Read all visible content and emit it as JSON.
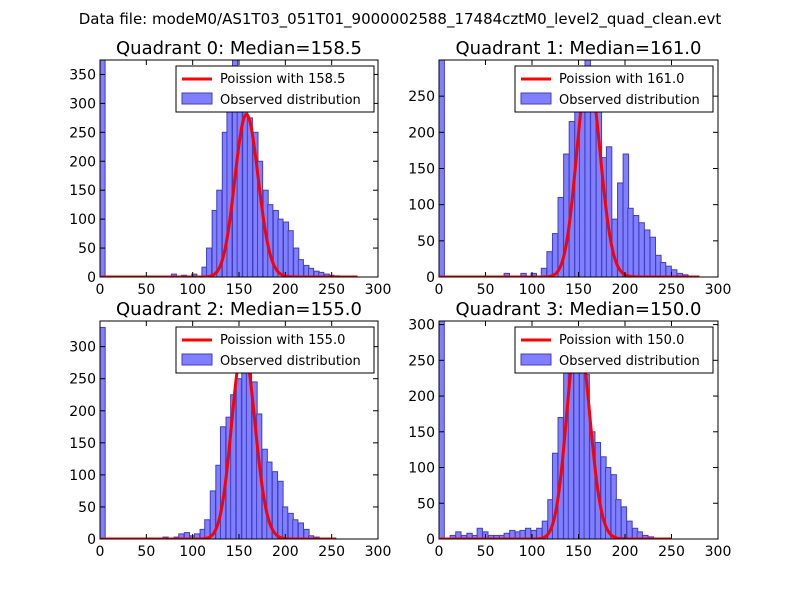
{
  "figure": {
    "suptitle": "Data file: modeM0/AS1T03_051T01_9000002588_17484cztM0_level2_quad_clean.evt",
    "colors": {
      "bar": "#7f7fff",
      "bar_edge": "#3f3fbf",
      "line": "#ff0000"
    }
  },
  "chart_data": [
    {
      "type": "bar",
      "title": "Quadrant 0: Median=158.5",
      "median": 158.5,
      "xlim": [
        0,
        300
      ],
      "ylim": [
        0,
        375
      ],
      "xticks": [
        0,
        50,
        100,
        150,
        200,
        250,
        300
      ],
      "yticks": [
        0,
        50,
        100,
        150,
        200,
        250,
        300,
        350
      ],
      "bin_width": 5.5,
      "bins": [
        [
          0,
          375
        ],
        [
          77,
          5
        ],
        [
          88,
          3
        ],
        [
          99,
          5
        ],
        [
          110,
          17
        ],
        [
          115,
          50
        ],
        [
          121,
          115
        ],
        [
          126,
          150
        ],
        [
          132,
          250
        ],
        [
          137,
          300
        ],
        [
          143,
          375
        ],
        [
          148,
          340
        ],
        [
          154,
          310
        ],
        [
          159,
          275
        ],
        [
          165,
          250
        ],
        [
          170,
          200
        ],
        [
          176,
          150
        ],
        [
          181,
          125
        ],
        [
          187,
          115
        ],
        [
          192,
          100
        ],
        [
          198,
          95
        ],
        [
          203,
          80
        ],
        [
          209,
          50
        ],
        [
          214,
          30
        ],
        [
          220,
          20
        ],
        [
          225,
          15
        ],
        [
          231,
          10
        ],
        [
          236,
          8
        ],
        [
          242,
          5
        ],
        [
          247,
          3
        ],
        [
          253,
          2
        ]
      ],
      "poisson_label": "Poission with 158.5",
      "hist_label": "Observed distribution",
      "poisson_peak": 281,
      "poisson_xmax": 278
    },
    {
      "type": "bar",
      "title": "Quadrant 1: Median=161.0",
      "median": 161.0,
      "xlim": [
        0,
        300
      ],
      "ylim": [
        0,
        300
      ],
      "xticks": [
        0,
        50,
        100,
        150,
        200,
        250,
        300
      ],
      "yticks": [
        0,
        50,
        100,
        150,
        200,
        250
      ],
      "bin_width": 5.8,
      "bins": [
        [
          0,
          300
        ],
        [
          70,
          5
        ],
        [
          88,
          5
        ],
        [
          99,
          5
        ],
        [
          110,
          12
        ],
        [
          116,
          35
        ],
        [
          122,
          60
        ],
        [
          128,
          110
        ],
        [
          134,
          170
        ],
        [
          140,
          215
        ],
        [
          146,
          255
        ],
        [
          151,
          270
        ],
        [
          157,
          300
        ],
        [
          163,
          275
        ],
        [
          169,
          250
        ],
        [
          175,
          165
        ],
        [
          180,
          180
        ],
        [
          186,
          80
        ],
        [
          192,
          130
        ],
        [
          198,
          170
        ],
        [
          203,
          95
        ],
        [
          209,
          85
        ],
        [
          215,
          75
        ],
        [
          221,
          65
        ],
        [
          227,
          55
        ],
        [
          233,
          30
        ],
        [
          238,
          20
        ],
        [
          244,
          15
        ],
        [
          250,
          10
        ],
        [
          256,
          5
        ],
        [
          262,
          3
        ]
      ],
      "poisson_label": "Poission with 161.0",
      "hist_label": "Observed distribution",
      "poisson_peak": 281,
      "poisson_xmax": 280
    },
    {
      "type": "bar",
      "title": "Quadrant 2: Median=155.0",
      "median": 155.0,
      "xlim": [
        0,
        300
      ],
      "ylim": [
        0,
        340
      ],
      "xticks": [
        0,
        50,
        100,
        150,
        200,
        250,
        300
      ],
      "yticks": [
        0,
        50,
        100,
        150,
        200,
        250,
        300
      ],
      "bin_width": 5.6,
      "bins": [
        [
          0,
          330
        ],
        [
          68,
          3
        ],
        [
          80,
          3
        ],
        [
          85,
          8
        ],
        [
          91,
          10
        ],
        [
          97,
          5
        ],
        [
          102,
          8
        ],
        [
          108,
          15
        ],
        [
          113,
          30
        ],
        [
          119,
          75
        ],
        [
          125,
          115
        ],
        [
          130,
          175
        ],
        [
          136,
          190
        ],
        [
          141,
          225
        ],
        [
          147,
          250
        ],
        [
          153,
          300
        ],
        [
          158,
          285
        ],
        [
          164,
          245
        ],
        [
          169,
          195
        ],
        [
          175,
          140
        ],
        [
          180,
          120
        ],
        [
          186,
          105
        ],
        [
          192,
          90
        ],
        [
          197,
          50
        ],
        [
          203,
          40
        ],
        [
          208,
          30
        ],
        [
          214,
          25
        ],
        [
          220,
          15
        ],
        [
          225,
          5
        ],
        [
          231,
          3
        ]
      ],
      "poisson_label": "Poission with 155.0",
      "hist_label": "Observed distribution",
      "poisson_peak": 301,
      "poisson_xmax": 255
    },
    {
      "type": "bar",
      "title": "Quadrant 3: Median=150.0",
      "median": 150.0,
      "xlim": [
        0,
        300
      ],
      "ylim": [
        0,
        305
      ],
      "xticks": [
        0,
        50,
        100,
        150,
        200,
        250,
        300
      ],
      "yticks": [
        0,
        50,
        100,
        150,
        200,
        250,
        300
      ],
      "bin_width": 5.7,
      "bins": [
        [
          0,
          305
        ],
        [
          12,
          5
        ],
        [
          18,
          10
        ],
        [
          24,
          5
        ],
        [
          30,
          8
        ],
        [
          36,
          5
        ],
        [
          41,
          15
        ],
        [
          47,
          10
        ],
        [
          53,
          5
        ],
        [
          59,
          5
        ],
        [
          65,
          5
        ],
        [
          70,
          8
        ],
        [
          76,
          12
        ],
        [
          82,
          10
        ],
        [
          87,
          12
        ],
        [
          93,
          15
        ],
        [
          99,
          12
        ],
        [
          105,
          15
        ],
        [
          111,
          25
        ],
        [
          117,
          55
        ],
        [
          122,
          120
        ],
        [
          128,
          170
        ],
        [
          134,
          250
        ],
        [
          139,
          270
        ],
        [
          145,
          290
        ],
        [
          151,
          250
        ],
        [
          156,
          230
        ],
        [
          162,
          150
        ],
        [
          168,
          135
        ],
        [
          174,
          115
        ],
        [
          179,
          100
        ],
        [
          185,
          90
        ],
        [
          190,
          55
        ],
        [
          196,
          45
        ],
        [
          202,
          25
        ],
        [
          208,
          15
        ],
        [
          213,
          10
        ],
        [
          219,
          5
        ],
        [
          225,
          3
        ]
      ],
      "poisson_label": "Poission with 150.0",
      "hist_label": "Observed distribution",
      "poisson_peak": 290,
      "poisson_xmax": 250
    }
  ]
}
